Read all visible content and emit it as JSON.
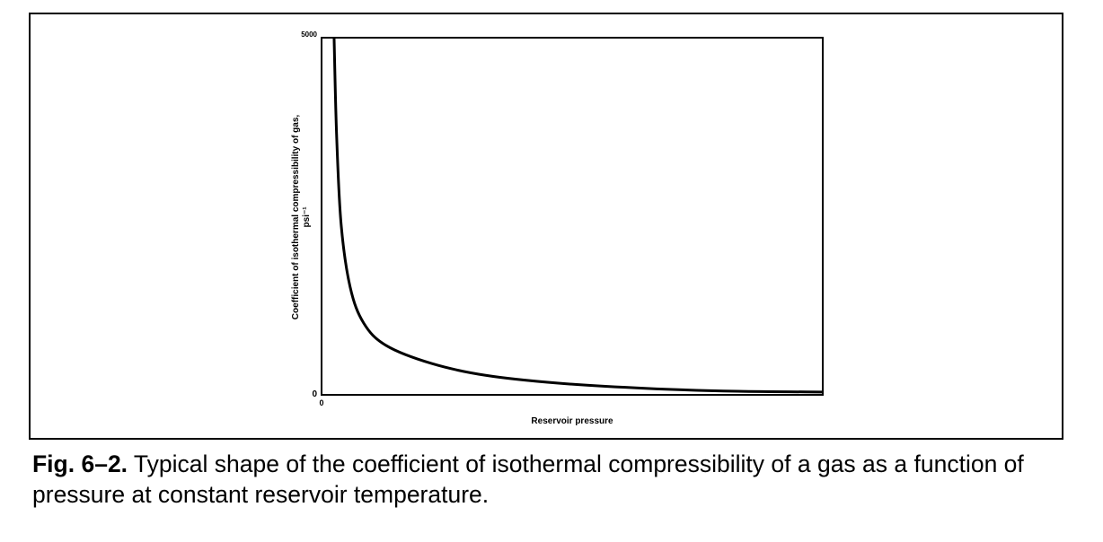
{
  "chart_data": {
    "type": "line",
    "title": "",
    "xlabel": "Reservoir pressure",
    "ylabel": "Coefficient of isothermal compressibility of gas, psi⁻¹",
    "ylabel_line1": "Coefficient of isothermal compressibility of gas,",
    "ylabel_line2": "psi⁻¹",
    "x_tick_labels": [
      "0"
    ],
    "y_tick_labels": [
      "0",
      "5000"
    ],
    "xlim": [
      0,
      100
    ],
    "ylim": [
      0,
      5000
    ],
    "grid": false,
    "series": [
      {
        "x": [
          2.5,
          3.0,
          3.9,
          5.7,
          8.4,
          12.9,
          21.9,
          32.6,
          47,
          65,
          83,
          100
        ],
        "y": [
          5000,
          3640,
          2390,
          1510,
          1005,
          690,
          440,
          275,
          165,
          90,
          50,
          40
        ]
      }
    ],
    "color": "#000000"
  },
  "caption": {
    "label": "Fig. 6–2.",
    "text": " Typical shape of the coefficient of isothermal compressibility of a gas as a function of pressure at constant reservoir temperature."
  }
}
